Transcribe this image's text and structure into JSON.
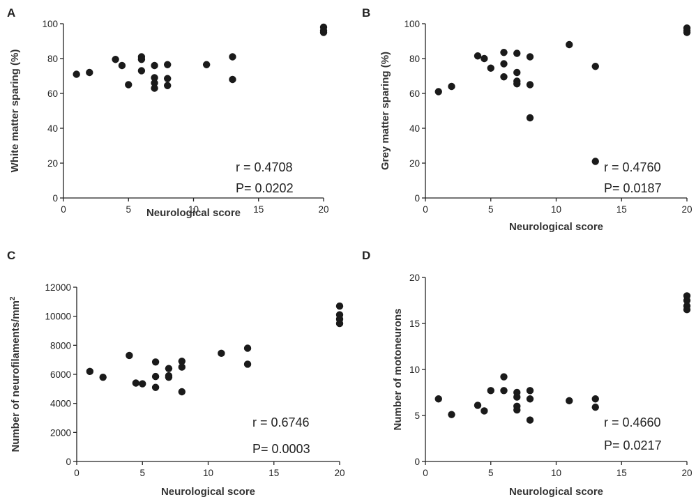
{
  "chart_data": [
    {
      "type": "scatter",
      "panel_label": "A",
      "xlabel": "Neurological score",
      "ylabel": "White matter sparing (%)",
      "xlim": [
        0,
        20
      ],
      "ylim": [
        0,
        100
      ],
      "xticks": [
        0,
        5,
        10,
        15,
        20
      ],
      "yticks": [
        0,
        20,
        40,
        60,
        80,
        100
      ],
      "x": [
        1,
        2,
        4,
        4.5,
        5,
        6,
        6,
        6,
        7,
        7,
        7,
        7,
        8,
        8,
        8,
        11,
        13,
        13,
        20,
        20,
        20
      ],
      "y": [
        71,
        72,
        79.5,
        76,
        65,
        81,
        79.5,
        73,
        76,
        69,
        66,
        63,
        76.5,
        68.5,
        64.5,
        76.5,
        81,
        68,
        98,
        96,
        95
      ],
      "r_text": "r = 0.4708",
      "p_text": "P= 0.0202"
    },
    {
      "type": "scatter",
      "panel_label": "B",
      "xlabel": "Neurological score",
      "ylabel": "Grey matter sparing (%)",
      "xlim": [
        0,
        20
      ],
      "ylim": [
        0,
        100
      ],
      "xticks": [
        0,
        5,
        10,
        15,
        20
      ],
      "yticks": [
        0,
        20,
        40,
        60,
        80,
        100
      ],
      "x": [
        1,
        2,
        4,
        4.5,
        5,
        6,
        6,
        6,
        7,
        7,
        7,
        7,
        8,
        8,
        8,
        11,
        13,
        13,
        20,
        20,
        20
      ],
      "y": [
        61,
        64,
        81.5,
        80,
        74.5,
        83.5,
        77,
        69.5,
        83,
        72,
        67,
        65.5,
        81,
        65,
        46,
        88,
        75.5,
        21,
        97.5,
        96,
        95
      ],
      "r_text": "r = 0.4760",
      "p_text": "P= 0.0187"
    },
    {
      "type": "scatter",
      "panel_label": "C",
      "xlabel": "Neurological score",
      "ylabel": "Number of neurofilaments/mm",
      "ylabel_superscript": "2",
      "xlim": [
        0,
        20
      ],
      "ylim": [
        0,
        12000
      ],
      "xticks": [
        0,
        5,
        10,
        15,
        20
      ],
      "yticks": [
        0,
        2000,
        4000,
        6000,
        8000,
        10000,
        12000
      ],
      "x": [
        1,
        2,
        4,
        4.5,
        5,
        6,
        6,
        6,
        7,
        7,
        7,
        8,
        8,
        8,
        11,
        13,
        13,
        20,
        20,
        20,
        20
      ],
      "y": [
        6200,
        5800,
        7300,
        5400,
        5350,
        6850,
        5850,
        5100,
        6400,
        5900,
        5800,
        6900,
        6500,
        4800,
        7450,
        7800,
        6700,
        10700,
        10100,
        9800,
        9500
      ],
      "r_text": "r = 0.6746",
      "p_text": "P= 0.0003"
    },
    {
      "type": "scatter",
      "panel_label": "D",
      "xlabel": "Neurological score",
      "ylabel": "Number of motoneurons",
      "xlim": [
        0,
        20
      ],
      "ylim": [
        0,
        20
      ],
      "xticks": [
        0,
        5,
        10,
        15,
        20
      ],
      "yticks": [
        0,
        5,
        10,
        15,
        20
      ],
      "x": [
        1,
        2,
        4,
        4.5,
        5,
        6,
        6,
        7,
        7,
        7,
        7,
        8,
        8,
        8,
        11,
        13,
        13,
        20,
        20,
        20,
        20
      ],
      "y": [
        6.8,
        5.1,
        6.1,
        5.5,
        7.7,
        9.2,
        7.7,
        7.5,
        7,
        6,
        5.6,
        7.7,
        6.8,
        4.5,
        6.6,
        6.8,
        5.9,
        18,
        17.5,
        16.9,
        16.5
      ],
      "r_text": "r = 0.4660",
      "p_text": "P= 0.0217"
    }
  ]
}
